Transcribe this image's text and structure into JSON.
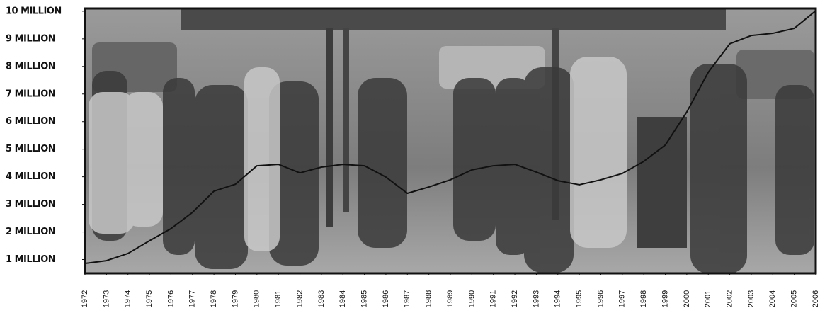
{
  "chart_data": {
    "type": "line",
    "x": [
      1972,
      1973,
      1974,
      1975,
      1976,
      1977,
      1978,
      1979,
      1980,
      1981,
      1982,
      1983,
      1984,
      1985,
      1986,
      1987,
      1988,
      1989,
      1990,
      1991,
      1992,
      1993,
      1994,
      1995,
      1996,
      1997,
      1998,
      1999,
      2000,
      2001,
      2002,
      2003,
      2004,
      2005,
      2006
    ],
    "series": [
      {
        "color": "#111111",
        "values": [
          0.86,
          0.96,
          1.22,
          1.68,
          2.12,
          2.71,
          3.48,
          3.73,
          4.4,
          4.45,
          4.14,
          4.35,
          4.45,
          4.4,
          3.99,
          3.4,
          3.63,
          3.89,
          4.25,
          4.4,
          4.45,
          4.17,
          3.86,
          3.71,
          3.89,
          4.12,
          4.56,
          5.15,
          6.35,
          7.79,
          8.82,
          9.12,
          9.2,
          9.38,
          10.02
        ]
      }
    ],
    "xlim": [
      1972,
      2006
    ],
    "xticks": [
      1972,
      1973,
      1974,
      1975,
      1976,
      1977,
      1978,
      1979,
      1980,
      1981,
      1982,
      1983,
      1984,
      1985,
      1986,
      1987,
      1988,
      1989,
      1990,
      1991,
      1992,
      1993,
      1994,
      1995,
      1996,
      1997,
      1998,
      1999,
      2000,
      2001,
      2002,
      2003,
      2004,
      2005,
      2006
    ],
    "ylim": [
      0.5,
      10.1
    ],
    "yticks": [
      {
        "value": 1,
        "label": "1 MILLION"
      },
      {
        "value": 2,
        "label": "2 MILLION"
      },
      {
        "value": 3,
        "label": "3 MILLION"
      },
      {
        "value": 4,
        "label": "4 MILLION"
      },
      {
        "value": 5,
        "label": "5 MILLION"
      },
      {
        "value": 6,
        "label": "6 MILLION"
      },
      {
        "value": 7,
        "label": "7 MILLION"
      },
      {
        "value": 8,
        "label": "8 MILLION"
      },
      {
        "value": 9,
        "label": "9 MILLION"
      },
      {
        "value": 10,
        "label": "10 MILLION"
      }
    ]
  }
}
